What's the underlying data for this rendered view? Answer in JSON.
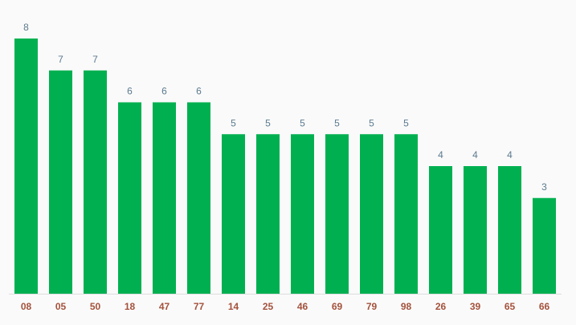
{
  "chart_data": {
    "type": "bar",
    "categories": [
      "08",
      "05",
      "50",
      "18",
      "47",
      "77",
      "14",
      "25",
      "46",
      "69",
      "79",
      "98",
      "26",
      "39",
      "65",
      "66"
    ],
    "values": [
      8,
      7,
      7,
      6,
      6,
      6,
      5,
      5,
      5,
      5,
      5,
      5,
      4,
      4,
      4,
      3
    ],
    "color": "#00b050"
  }
}
